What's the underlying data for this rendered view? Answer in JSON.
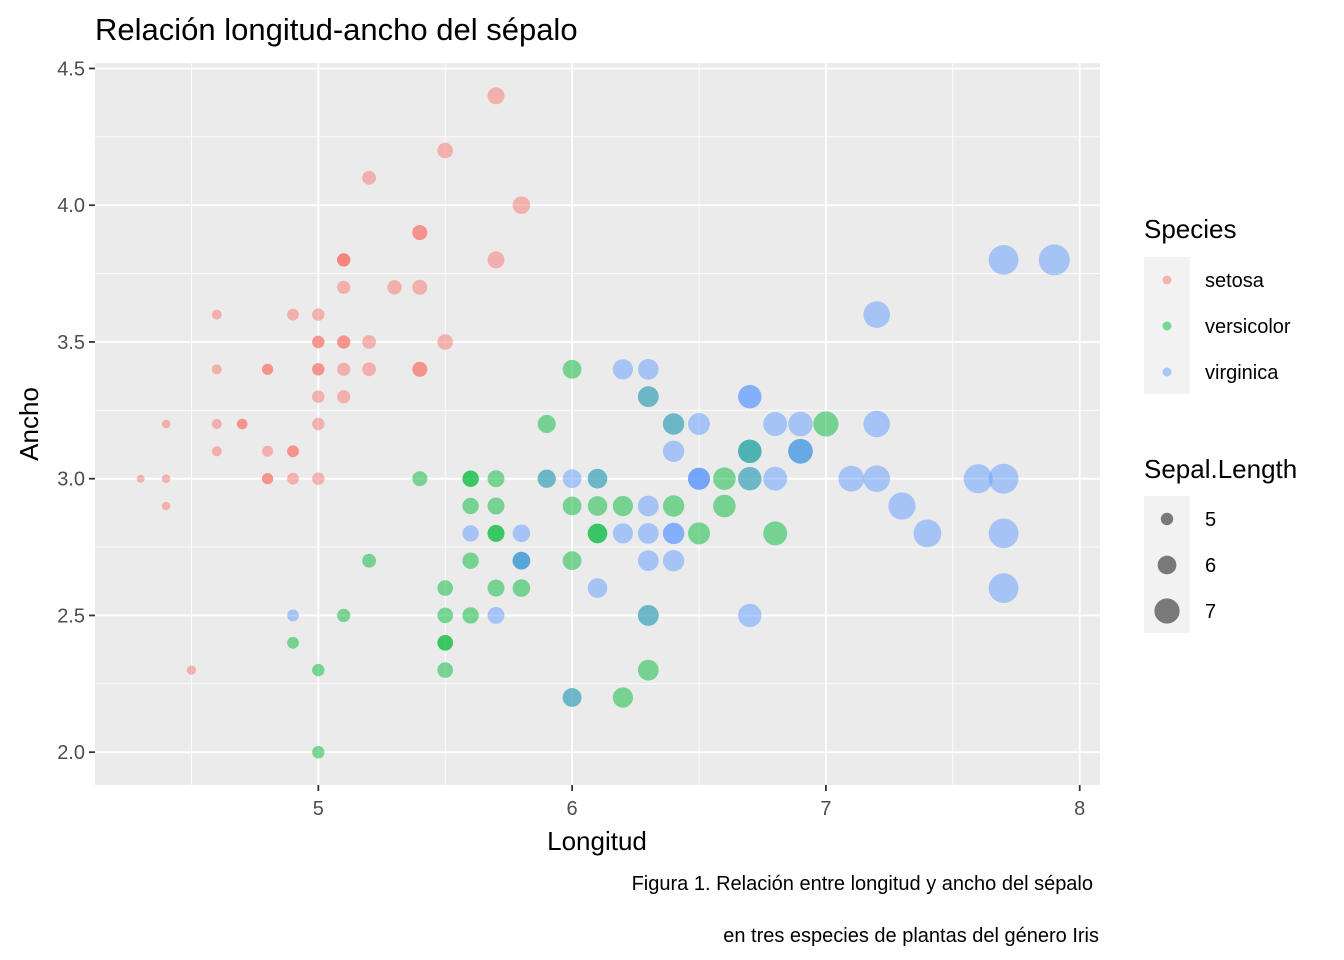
{
  "chart_data": {
    "type": "scatter",
    "title": "Relación longitud-ancho del sépalo",
    "xlabel": "Longitud",
    "ylabel": "Ancho",
    "xlim": [
      4.12,
      8.08
    ],
    "ylim": [
      1.88,
      4.52
    ],
    "x_ticks": [
      5,
      6,
      7,
      8
    ],
    "x_tick_labels": [
      "5",
      "6",
      "7",
      "8"
    ],
    "y_ticks": [
      2.0,
      2.5,
      3.0,
      3.5,
      4.0,
      4.5
    ],
    "y_tick_labels": [
      "2.0",
      "2.5",
      "3.0",
      "3.5",
      "4.0",
      "4.5"
    ],
    "grid": true,
    "point_alpha": 0.5,
    "size_variable": "Sepal.Length",
    "legend": {
      "position": "right",
      "color_title": "Species",
      "size_title": "Sepal.Length",
      "size_breaks": [
        5,
        6,
        7
      ],
      "size_labels": [
        "5",
        "6",
        "7"
      ]
    },
    "caption": [
      "Figura 1. Relación entre longitud y ancho del sépalo",
      "en tres especies de plantas del género Iris"
    ],
    "series": [
      {
        "name": "setosa",
        "color": "#F8766D",
        "x": [
          5.1,
          4.9,
          4.7,
          4.6,
          5.0,
          5.4,
          4.6,
          5.0,
          4.4,
          4.9,
          5.4,
          4.8,
          4.8,
          4.3,
          5.8,
          5.7,
          5.4,
          5.1,
          5.7,
          5.1,
          5.4,
          5.1,
          4.6,
          5.1,
          4.8,
          5.0,
          5.0,
          5.2,
          5.2,
          4.7,
          4.8,
          5.4,
          5.2,
          5.5,
          4.9,
          5.0,
          5.5,
          4.9,
          4.4,
          5.1,
          5.0,
          4.5,
          4.4,
          5.0,
          5.1,
          4.8,
          5.1,
          4.6,
          5.3,
          5.0
        ],
        "y": [
          3.5,
          3.0,
          3.2,
          3.1,
          3.6,
          3.9,
          3.4,
          3.4,
          2.9,
          3.1,
          3.7,
          3.4,
          3.0,
          3.0,
          4.0,
          4.4,
          3.9,
          3.5,
          3.8,
          3.8,
          3.4,
          3.7,
          3.6,
          3.3,
          3.4,
          3.0,
          3.4,
          3.5,
          3.4,
          3.2,
          3.1,
          3.4,
          4.1,
          4.2,
          3.1,
          3.2,
          3.5,
          3.6,
          3.0,
          3.4,
          3.5,
          2.3,
          3.2,
          3.5,
          3.8,
          3.0,
          3.8,
          3.2,
          3.7,
          3.3
        ]
      },
      {
        "name": "versicolor",
        "color": "#00BA38",
        "x": [
          7.0,
          6.4,
          6.9,
          5.5,
          6.5,
          5.7,
          6.3,
          4.9,
          6.6,
          5.2,
          5.0,
          5.9,
          6.0,
          6.1,
          5.6,
          6.7,
          5.6,
          5.8,
          6.2,
          5.6,
          5.9,
          6.1,
          6.3,
          6.1,
          6.4,
          6.6,
          6.8,
          6.7,
          6.0,
          5.7,
          5.5,
          5.5,
          5.8,
          6.0,
          5.4,
          6.0,
          6.7,
          6.3,
          5.6,
          5.5,
          5.5,
          6.1,
          5.8,
          5.0,
          5.6,
          5.7,
          5.7,
          6.2,
          5.1,
          5.7
        ],
        "y": [
          3.2,
          3.2,
          3.1,
          2.3,
          2.8,
          2.8,
          3.3,
          2.4,
          2.9,
          2.7,
          2.0,
          3.0,
          2.2,
          2.9,
          2.9,
          3.1,
          3.0,
          2.7,
          2.2,
          2.5,
          3.2,
          2.8,
          2.5,
          2.8,
          2.9,
          3.0,
          2.8,
          3.0,
          2.9,
          2.6,
          2.4,
          2.4,
          2.7,
          2.7,
          3.0,
          3.4,
          3.1,
          2.3,
          3.0,
          2.5,
          2.6,
          3.0,
          2.6,
          2.3,
          2.7,
          3.0,
          2.9,
          2.9,
          2.5,
          2.8
        ]
      },
      {
        "name": "virginica",
        "color": "#619CFF",
        "x": [
          6.3,
          5.8,
          7.1,
          6.3,
          6.5,
          7.6,
          4.9,
          7.3,
          6.7,
          7.2,
          6.5,
          6.4,
          6.8,
          5.7,
          5.8,
          6.4,
          6.5,
          7.7,
          7.7,
          6.0,
          6.9,
          5.6,
          7.7,
          6.3,
          6.7,
          7.2,
          6.2,
          6.1,
          6.4,
          7.2,
          7.4,
          7.9,
          6.4,
          6.3,
          6.1,
          7.7,
          6.3,
          6.4,
          6.0,
          6.9,
          6.7,
          6.9,
          5.8,
          6.8,
          6.7,
          6.7,
          6.3,
          6.5,
          6.2,
          5.9
        ],
        "y": [
          3.3,
          2.7,
          3.0,
          2.9,
          3.0,
          3.0,
          2.5,
          2.9,
          2.5,
          3.6,
          3.2,
          2.7,
          3.0,
          2.5,
          2.8,
          3.2,
          3.0,
          3.8,
          2.6,
          2.2,
          3.2,
          2.8,
          2.8,
          2.7,
          3.3,
          3.2,
          2.8,
          3.0,
          2.8,
          3.0,
          2.8,
          3.8,
          2.8,
          2.8,
          2.6,
          3.0,
          3.4,
          3.1,
          3.0,
          3.1,
          3.1,
          3.1,
          2.7,
          3.2,
          3.3,
          3.0,
          2.5,
          3.0,
          3.4,
          3.0
        ]
      }
    ]
  }
}
